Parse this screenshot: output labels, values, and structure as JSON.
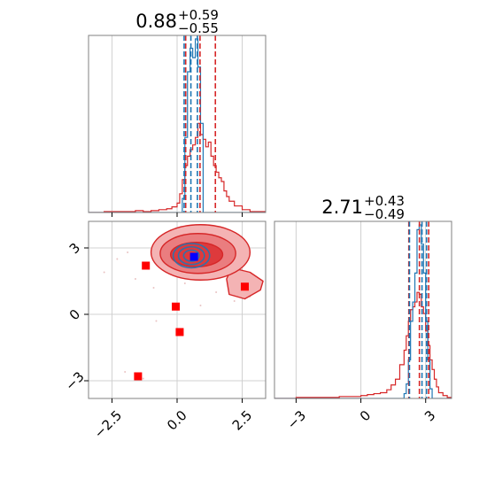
{
  "colors": {
    "red": "#d62728",
    "blue": "#1f77b4",
    "marker_red": "#ff0000",
    "marker_blue": "#0000ff",
    "grid": "#d0d0d0",
    "frame": "#808080"
  },
  "chart_data": {
    "type": "corner",
    "parameters": [
      "",
      ""
    ],
    "titles": [
      {
        "value": "0.88",
        "plus": "+0.59",
        "minus": "−0.55"
      },
      {
        "value": "2.71",
        "plus": "+0.43",
        "minus": "−0.49"
      }
    ],
    "grid": true,
    "axes": {
      "x0": {
        "range": [
          -3.4,
          3.4
        ],
        "ticks": [
          -2.5,
          0.0,
          2.5
        ],
        "tick_labels": [
          "−2.5",
          "0.0",
          "2.5"
        ]
      },
      "x1": {
        "range": [
          -4.0,
          4.2
        ],
        "ticks": [
          -3,
          0,
          3
        ],
        "tick_labels": [
          "−3",
          "0",
          "3"
        ]
      },
      "y1": {
        "range": [
          -3.8,
          4.2
        ],
        "ticks": [
          -3,
          0,
          3
        ],
        "tick_labels": [
          "−3",
          "0",
          "3"
        ]
      }
    },
    "hist0": {
      "bins": [
        -3.4,
        -3.1,
        -2.8,
        -2.5,
        -2.2,
        -1.9,
        -1.6,
        -1.3,
        -1.0,
        -0.7,
        -0.4,
        -0.2,
        0.0,
        0.1,
        0.2,
        0.3,
        0.4,
        0.5,
        0.6,
        0.7,
        0.8,
        0.9,
        1.0,
        1.1,
        1.2,
        1.3,
        1.4,
        1.5,
        1.6,
        1.7,
        1.8,
        1.9,
        2.0,
        2.2,
        2.5,
        2.8,
        3.1,
        3.4
      ],
      "series": [
        {
          "color": "red",
          "counts": [
            0,
            0,
            1,
            1,
            1,
            1,
            2,
            1,
            2,
            3,
            4,
            6,
            10,
            20,
            35,
            50,
            60,
            67,
            72,
            80,
            95,
            83,
            78,
            70,
            75,
            60,
            50,
            43,
            37,
            33,
            23,
            17,
            12,
            7,
            3,
            1,
            1
          ]
        },
        {
          "color": "blue",
          "counts": [
            0,
            0,
            0,
            0,
            0,
            0,
            0,
            0,
            0,
            0,
            0,
            0,
            0,
            0,
            15,
            80,
            150,
            175,
            165,
            185,
            155,
            95,
            0,
            0,
            0,
            0,
            0,
            0,
            0,
            0,
            0,
            0,
            0,
            0,
            0,
            0,
            0
          ]
        }
      ],
      "quantiles": {
        "red": [
          0.33,
          0.88,
          1.47
        ],
        "blue": [
          0.27,
          0.53,
          0.78
        ]
      }
    },
    "hist1": {
      "bins": [
        -4.0,
        -3.5,
        -3.0,
        -2.5,
        -2.0,
        -1.5,
        -1.0,
        -0.5,
        0.0,
        0.3,
        0.6,
        0.9,
        1.2,
        1.4,
        1.6,
        1.8,
        2.0,
        2.1,
        2.2,
        2.3,
        2.4,
        2.5,
        2.6,
        2.7,
        2.8,
        2.9,
        3.0,
        3.1,
        3.2,
        3.3,
        3.4,
        3.5,
        3.6,
        3.8,
        4.0,
        4.2
      ],
      "series": [
        {
          "color": "red",
          "counts": [
            0,
            0,
            1,
            1,
            1,
            1,
            2,
            2,
            3,
            4,
            5,
            6,
            9,
            14,
            20,
            35,
            50,
            65,
            80,
            92,
            95,
            100,
            110,
            108,
            95,
            88,
            70,
            55,
            40,
            30,
            20,
            12,
            6,
            3,
            1
          ]
        },
        {
          "color": "blue",
          "counts": [
            0,
            0,
            0,
            0,
            0,
            0,
            0,
            0,
            0,
            0,
            0,
            0,
            0,
            0,
            0,
            0,
            5,
            15,
            40,
            80,
            100,
            130,
            175,
            180,
            160,
            130,
            80,
            40,
            10,
            0,
            0,
            0,
            0,
            0,
            0
          ]
        }
      ],
      "quantiles": {
        "red": [
          2.22,
          2.71,
          3.14
        ],
        "blue": [
          2.25,
          2.83,
          3.04
        ]
      }
    },
    "scatter": {
      "red_markers": [
        {
          "x": -1.2,
          "y": 2.2
        },
        {
          "x": -0.05,
          "y": 0.35
        },
        {
          "x": 0.1,
          "y": -0.8
        },
        {
          "x": 2.6,
          "y": 1.25
        },
        {
          "x": -1.5,
          "y": -2.8
        }
      ],
      "blue_marker": {
        "x": 0.65,
        "y": 2.6
      },
      "background_points": [
        {
          "x": -2.3,
          "y": 2.5
        },
        {
          "x": -1.9,
          "y": 2.8
        },
        {
          "x": -1.6,
          "y": 1.6
        },
        {
          "x": -0.9,
          "y": 1.2
        },
        {
          "x": -0.4,
          "y": 1.9
        },
        {
          "x": 0.3,
          "y": 1.4
        },
        {
          "x": 1.5,
          "y": 1.0
        },
        {
          "x": 2.2,
          "y": 0.6
        },
        {
          "x": 2.8,
          "y": 0.8
        },
        {
          "x": -1.3,
          "y": -2.9
        },
        {
          "x": -2.0,
          "y": -2.6
        },
        {
          "x": -0.8,
          "y": -0.3
        },
        {
          "x": 1.8,
          "y": 2.0
        },
        {
          "x": 2.4,
          "y": 2.3
        },
        {
          "x": -2.8,
          "y": 1.9
        },
        {
          "x": 0.9,
          "y": 0.4
        },
        {
          "x": 1.2,
          "y": 1.6
        },
        {
          "x": -0.2,
          "y": 2.9
        }
      ],
      "red_contours": [
        {
          "level": "outer",
          "cx": 0.9,
          "cy": 2.8,
          "rx": 1.9,
          "ry": 1.25
        },
        {
          "level": "middle",
          "cx": 0.8,
          "cy": 2.75,
          "rx": 1.45,
          "ry": 0.9
        },
        {
          "level": "inner",
          "cx": 0.75,
          "cy": 2.7,
          "rx": 1.0,
          "ry": 0.55
        }
      ],
      "red_tail": [
        {
          "x": 2.1,
          "y": 2.1
        },
        {
          "x": 2.8,
          "y": 1.9
        },
        {
          "x": 3.3,
          "y": 1.5
        },
        {
          "x": 3.2,
          "y": 1.1
        },
        {
          "x": 2.6,
          "y": 0.7
        },
        {
          "x": 2.0,
          "y": 0.9
        },
        {
          "x": 1.9,
          "y": 1.6
        }
      ],
      "blue_contours": [
        {
          "level": "outer",
          "cx": 0.55,
          "cy": 2.65,
          "rx": 0.7,
          "ry": 0.55
        },
        {
          "level": "middle",
          "cx": 0.55,
          "cy": 2.65,
          "rx": 0.5,
          "ry": 0.4
        },
        {
          "level": "inner",
          "cx": 0.55,
          "cy": 2.65,
          "rx": 0.3,
          "ry": 0.25
        }
      ]
    }
  }
}
